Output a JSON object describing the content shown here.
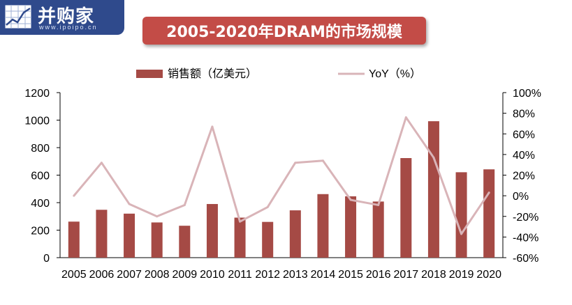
{
  "logo": {
    "name": "并购家",
    "url": "www.ipoipo.cn"
  },
  "title": "2005-2020年DRAM的市场规模",
  "colors": {
    "bar": "#a54a45",
    "line": "#d9b4b8",
    "title_bg": "#c34c47",
    "logo_bg": "#2f4a8c"
  },
  "chart_data": {
    "type": "bar",
    "title": "2005-2020年DRAM的市场规模",
    "categories": [
      "2005",
      "2006",
      "2007",
      "2008",
      "2009",
      "2010",
      "2011",
      "2012",
      "2013",
      "2014",
      "2015",
      "2016",
      "2017",
      "2018",
      "2019",
      "2020"
    ],
    "series": [
      {
        "name": "销售额（亿美元）",
        "type": "bar",
        "axis": "left",
        "values": [
          262,
          348,
          320,
          256,
          232,
          390,
          291,
          260,
          344,
          462,
          446,
          408,
          724,
          992,
          621,
          642
        ]
      },
      {
        "name": "YoY（%）",
        "type": "line",
        "axis": "right",
        "values": [
          0,
          32,
          -8,
          -20,
          -9,
          67,
          -25,
          -11,
          32,
          34,
          -4,
          -9,
          76,
          37,
          -37,
          3
        ]
      }
    ],
    "y_left": {
      "min": 0,
      "max": 1200,
      "ticks": [
        "0",
        "200",
        "400",
        "600",
        "800",
        "1000",
        "1200"
      ]
    },
    "y_right": {
      "min": -60,
      "max": 100,
      "ticks": [
        "-60%",
        "-40%",
        "-20%",
        "0%",
        "20%",
        "40%",
        "60%",
        "80%",
        "100%"
      ]
    },
    "legend": {
      "position": "top"
    },
    "grid": false
  }
}
